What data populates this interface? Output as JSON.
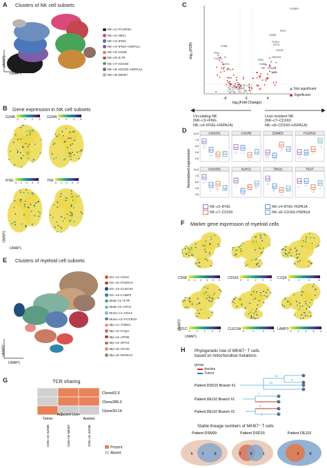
{
  "panelA": {
    "label": "A",
    "title": "Clusters of NK cell subsets",
    "legend": [
      {
        "name": "NK–c1–FCGR3A",
        "color": "#1b1b1b"
      },
      {
        "name": "NK–c2–SELL",
        "color": "#d94a7a"
      },
      {
        "name": "NK–c3–IFNG",
        "color": "#4c77b8"
      },
      {
        "name": "NK–c4–IFNG–HSPA1A",
        "color": "#7d5ca8"
      },
      {
        "name": "NK–c5–CD69",
        "color": "#c98a3c"
      },
      {
        "name": "NK–c6–IL7R",
        "color": "#c2474e"
      },
      {
        "name": "NK–c7–CD160",
        "color": "#4aa35a"
      },
      {
        "name": "NK–c8–CD160–HSPA1A",
        "color": "#8d6e63"
      },
      {
        "name": "NK–c9–MKI67",
        "color": "#b5b5b5"
      }
    ],
    "xlabel": "UMAP1",
    "ylabel": "UMAP2"
  },
  "panelB": {
    "label": "B",
    "title": "Gene expression in NK cell subsets",
    "maps": [
      {
        "gene": "GZMK",
        "ticks": [
          "0",
          "1",
          "2",
          "3"
        ]
      },
      {
        "gene": "GZMA",
        "ticks": [
          "0",
          "2",
          "4",
          "6"
        ]
      },
      {
        "gene": "IFNG",
        "ticks": [
          "0",
          "1",
          "2",
          "3",
          "4"
        ]
      },
      {
        "gene": "TNF",
        "ticks": [
          "0",
          "1",
          "2",
          "3",
          "4"
        ]
      }
    ],
    "xlabel": "UMAP1",
    "ylabel": "UMAP2"
  },
  "panelC": {
    "label": "C",
    "ylabel": "-log₁₀(FDR)",
    "xlabel": "log₂(Fold Change)",
    "xticks": [
      "-4",
      "0",
      "4"
    ],
    "genes": [
      "FGFBP2",
      "PRF1",
      "GZMB",
      "FCRL6",
      "MT1G",
      "GZMK",
      "IFNG",
      "CXCR6",
      "KLRC1",
      "CD160",
      "HAVCR2",
      "IFNG",
      "GZMA",
      "TNF",
      "SELL",
      "EOMES",
      "TBX21"
    ],
    "legend": [
      {
        "name": "Not significant",
        "color": "#aaaaaa"
      },
      {
        "name": "Significant",
        "color": "#d62728"
      }
    ],
    "left_arrow": "Circulating NK\n(NK–c3–IFNG\nNK–c4–IFNG–HSPA1A)",
    "right_arrow": "Liver-resident NK\n(NK–c7–CD160\nNK–c8–CD160–HSPA1A)"
  },
  "panelD": {
    "label": "D",
    "ylabel": "Normalized expression",
    "yticks": [
      "0.0",
      "2.5",
      "5.0",
      "7.5",
      "10.0"
    ],
    "genes_row1": [
      "CX3CR1",
      "CXCR6",
      "EOMES",
      "FCGR3A"
    ],
    "genes_row2": [
      "HAVCR2",
      "KLRC1",
      "TBX21",
      "TIGIT"
    ],
    "legend": [
      {
        "name": "NK–c3–IFNG",
        "color": "#8e6fc1"
      },
      {
        "name": "NK–c4–IFNG–HSPA1A",
        "color": "#5b8bd0"
      },
      {
        "name": "NK–c7–CD160",
        "color": "#e07a4f"
      },
      {
        "name": "NK–c8–CD160–HSPA1A",
        "color": "#6aa9c8"
      }
    ]
  },
  "panelE": {
    "label": "E",
    "title": "Clusters of myeloid cell subsets",
    "legend": [
      {
        "name": "DC–c1–CD1C",
        "color": "#d9534f"
      },
      {
        "name": "DC–c2–FCER1A",
        "color": "#c0392b"
      },
      {
        "name": "DC–c3–CLEC9A",
        "color": "#1f4e79"
      },
      {
        "name": "DC–c4–LAMP3",
        "color": "#2e86ab"
      },
      {
        "name": "Mast–c1–IL7R",
        "color": "#5d9b84"
      },
      {
        "name": "Mast–c2–CPA3",
        "color": "#7fb3a0"
      },
      {
        "name": "Mono–c1–CD14",
        "color": "#8fb9c9"
      },
      {
        "name": "Mono–c2–FCGR3A",
        "color": "#5b7db1"
      },
      {
        "name": "Mp–c1–THBS1",
        "color": "#e88a8a"
      },
      {
        "name": "Mp–c2–C1QA",
        "color": "#c97b63"
      },
      {
        "name": "Mp–c3–APOE",
        "color": "#b23a48"
      },
      {
        "name": "Mp–c4–GPX3",
        "color": "#9a7b6a"
      },
      {
        "name": "Mp–c5–VCAN",
        "color": "#c8a27c"
      },
      {
        "name": "Mp–c6–MARCO",
        "color": "#a8876b"
      }
    ],
    "xlabel": "UMAP1",
    "ylabel": "UMAP2"
  },
  "panelF": {
    "label": "F",
    "title": "Marker gene expression of myeloid cells",
    "maps": [
      {
        "gene": "CD68",
        "ticks": [
          "0",
          "1",
          "2",
          "3",
          "4",
          "5"
        ]
      },
      {
        "gene": "CD163",
        "ticks": [
          "0",
          "1",
          "2",
          "3",
          "4"
        ]
      },
      {
        "gene": "C1QA",
        "ticks": [
          "0",
          "2",
          "4",
          "6"
        ]
      },
      {
        "gene": "CD1C",
        "ticks": [
          "0",
          "1",
          "2",
          "3",
          "4"
        ]
      },
      {
        "gene": "CLEC9A",
        "ticks": [
          "0",
          "1",
          "2",
          "3"
        ]
      },
      {
        "gene": "LAMP3",
        "ticks": [
          "0",
          "1",
          "2",
          "3",
          "4"
        ]
      }
    ],
    "xlabel": "UMAP1",
    "ylabel": "UMAP2"
  },
  "panelG": {
    "label": "G",
    "title": "TCR sharing",
    "rows": [
      "Clone62:3",
      "Clone285:3",
      "Clone30:14"
    ],
    "col_groups": [
      "Tumor",
      "Adjacent\nLiver",
      "Ascites"
    ],
    "cols": [
      "CD8–c5–GZMK",
      "CD8–c6–MKI67",
      "CD8–c5–GZMK"
    ],
    "legend": [
      {
        "name": "Present",
        "color": "#e8825a"
      },
      {
        "name": "Absent",
        "color": "#d0d0d0"
      }
    ],
    "cells": [
      [
        0,
        1,
        1
      ],
      [
        0,
        1,
        1
      ],
      [
        1,
        0,
        0
      ]
    ]
  },
  "panelH": {
    "label": "H",
    "title": "Phylogenetic tree of MKI67⁺ T cells\nbased on mitochondrial mutations",
    "group_title": "group",
    "group_legend": [
      {
        "name": "Ascites",
        "color": "#d62728"
      },
      {
        "name": "Tumor",
        "color": "#1f77b4"
      }
    ],
    "branches": [
      "Patient DSD15 Branch #1",
      "Patient DEJ10 Branch #1",
      "Patient DEJ10 Branch #2"
    ],
    "tree_nums": [
      "10",
      "12",
      "5",
      "7",
      "1",
      "6",
      "1"
    ],
    "venn_title": "Stable lineage numbers of MKI67⁺ T cells",
    "venns": [
      {
        "patient": "Patient DSN09",
        "left": "5",
        "overlap": "1",
        "right": "9"
      },
      {
        "patient": "Patient DSD15",
        "left": "2",
        "overlap": "8",
        "right": "1"
      },
      {
        "patient": "Patient DEJ10",
        "left": "",
        "overlap": "2",
        "right": "8"
      }
    ]
  }
}
